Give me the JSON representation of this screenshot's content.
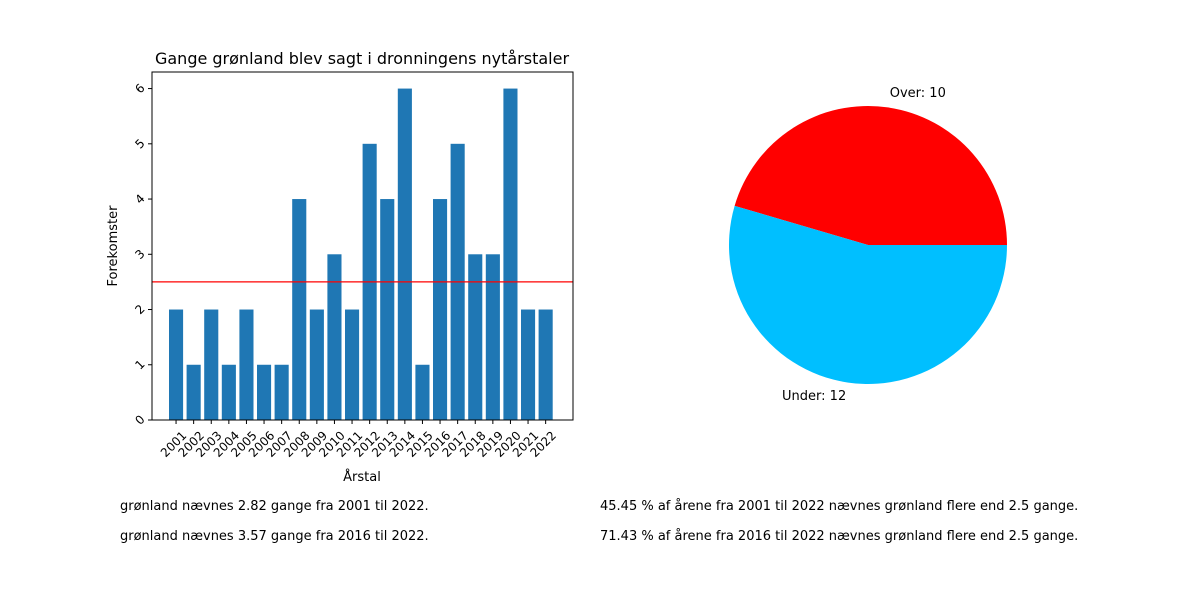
{
  "chart_data": [
    {
      "type": "bar",
      "title": "Gange grønland blev sagt i dronningens nytårstaler",
      "xlabel": "Årstal",
      "ylabel": "Forekomster",
      "categories": [
        "2001",
        "2002",
        "2003",
        "2004",
        "2005",
        "2006",
        "2007",
        "2008",
        "2009",
        "2010",
        "2011",
        "2012",
        "2013",
        "2014",
        "2015",
        "2016",
        "2017",
        "2018",
        "2019",
        "2020",
        "2021",
        "2022"
      ],
      "values": [
        2,
        1,
        2,
        1,
        2,
        1,
        1,
        4,
        2,
        3,
        2,
        5,
        4,
        6,
        1,
        4,
        5,
        3,
        3,
        6,
        2,
        2
      ],
      "ylim": [
        0,
        6.3
      ],
      "yticks": [
        "0",
        "1",
        "2",
        "3",
        "4",
        "5",
        "6"
      ],
      "bar_color": "#1f77b4",
      "reference_line": {
        "value": 2.5,
        "color": "#ff0000"
      },
      "grid": false
    },
    {
      "type": "pie",
      "slices": [
        {
          "label": "Over: 10",
          "value": 10,
          "color": "#ff0000"
        },
        {
          "label": "Under: 12",
          "value": 12,
          "color": "#00bfff"
        }
      ]
    }
  ],
  "notes": {
    "left": [
      "grønland nævnes 2.82 gange fra 2001 til 2022.",
      "grønland nævnes 3.57 gange fra 2016 til 2022."
    ],
    "right": [
      "45.45 % af årene fra 2001 til 2022 nævnes grønland flere end 2.5 gange.",
      "71.43 % af årene fra 2016 til 2022 nævnes grønland flere end 2.5 gange."
    ]
  }
}
